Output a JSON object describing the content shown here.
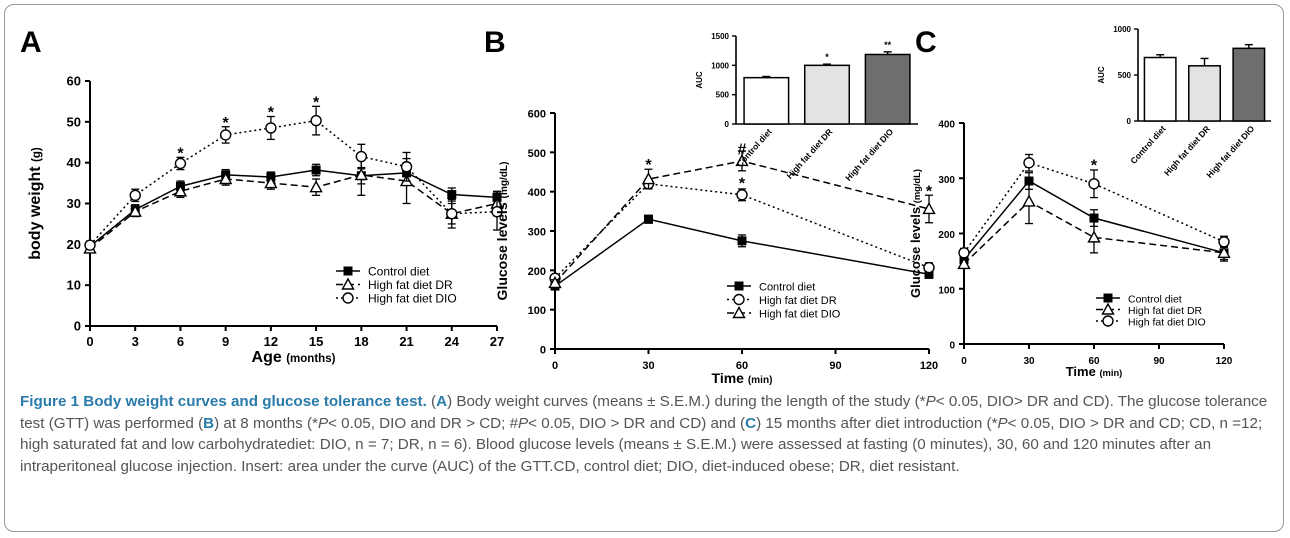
{
  "figure": {
    "caption_title": "Figure 1 Body weight curves and glucose tolerance test.",
    "caption_parts": [
      "(",
      "A",
      ") Body weight curves (means ± S.E.M.) during the length of the study (*",
      "P",
      "< 0.05, DIO> DR and CD). The glucose tolerance test (GTT) was performed (",
      "B",
      ") at 8 months (*",
      "P",
      "< 0.05, DIO and DR > CD; #",
      "P",
      "< 0.05, DIO > DR and CD) and (",
      "C",
      ") 15 months after diet introduction (*",
      "P",
      "< 0.05, DIO > DR and CD; CD, n =12; high saturated fat and low carbohydratediet: DIO, n = 7; DR, n = 6). Blood glucose levels (means ± S.E.M.) were assessed at fasting (0 minutes), 30, 60 and 120 minutes after an intraperitoneal glucose injection. Insert: area under the curve (AUC) of the GTT.CD, control diet; DIO, diet-induced obese; DR, diet resistant."
    ]
  },
  "chart_data": [
    {
      "panel": "A",
      "type": "line",
      "xlabel": "Age",
      "xlabel_unit": "(months)",
      "ylabel": "body weight",
      "ylabel_unit": "(g)",
      "xlim": [
        0,
        27
      ],
      "ylim": [
        0,
        60
      ],
      "xticks": [
        0,
        3,
        6,
        9,
        12,
        15,
        18,
        21,
        24,
        27
      ],
      "yticks": [
        0,
        10,
        20,
        30,
        40,
        50,
        60
      ],
      "x": [
        0,
        3,
        6,
        9,
        12,
        15,
        18,
        21,
        24,
        27
      ],
      "series": [
        {
          "name": "Control diet",
          "marker": "square",
          "dash": "solid",
          "values": [
            19.5,
            28.5,
            34.2,
            37.0,
            36.5,
            38.2,
            36.8,
            37.5,
            32.2,
            31.5
          ],
          "err": [
            1.0,
            1.2,
            1.3,
            1.3,
            1.2,
            1.4,
            2.0,
            2.5,
            1.6,
            1.4
          ]
        },
        {
          "name": "High fat diet DR",
          "marker": "triangle",
          "dash": "dashed",
          "values": [
            19.0,
            28.0,
            33.0,
            36.0,
            35.0,
            34.0,
            37.0,
            35.5,
            27.5,
            30.0
          ],
          "err": [
            1.0,
            1.2,
            1.5,
            1.5,
            1.5,
            2.0,
            5.0,
            5.5,
            2.5,
            3.0
          ]
        },
        {
          "name": "High fat diet DIO",
          "marker": "circle",
          "dash": "dotted",
          "values": [
            19.8,
            32.0,
            39.8,
            46.8,
            48.5,
            50.3,
            41.5,
            39.0,
            27.5,
            28.0
          ],
          "err": [
            1.0,
            1.5,
            1.5,
            2.0,
            2.8,
            3.5,
            3.0,
            3.5,
            3.5,
            4.5
          ]
        }
      ],
      "annotations": [
        {
          "x": 6,
          "y": 42.5,
          "text": "*"
        },
        {
          "x": 9,
          "y": 50.0,
          "text": "*"
        },
        {
          "x": 12,
          "y": 52.5,
          "text": "*"
        },
        {
          "x": 15,
          "y": 55.0,
          "text": "*"
        }
      ],
      "legend": "bottom-right"
    },
    {
      "panel": "B",
      "type": "line",
      "xlabel": "Time",
      "xlabel_unit": "(min)",
      "ylabel": "Glucose levels",
      "ylabel_unit": "(mg/dL)",
      "xlim": [
        0,
        120
      ],
      "ylim": [
        0,
        600
      ],
      "xticks": [
        0,
        30,
        60,
        90,
        120
      ],
      "yticks": [
        0,
        100,
        200,
        300,
        400,
        500,
        600
      ],
      "x": [
        0,
        30,
        60,
        120
      ],
      "series": [
        {
          "name": "Control diet",
          "marker": "square",
          "dash": "solid",
          "values": [
            160,
            330,
            275,
            190
          ],
          "err": [
            8,
            10,
            15,
            10
          ]
        },
        {
          "name": "High fat diet DR",
          "marker": "circle",
          "dash": "dotted",
          "values": [
            180,
            420,
            392,
            207
          ],
          "err": [
            8,
            12,
            15,
            12
          ]
        },
        {
          "name": "High fat diet DIO",
          "marker": "triangle",
          "dash": "dashed",
          "values": [
            168,
            432,
            478,
            356
          ],
          "err": [
            8,
            25,
            25,
            35
          ]
        }
      ],
      "annotations": [
        {
          "x": 30,
          "y": 470,
          "text": "*"
        },
        {
          "x": 60,
          "y": 510,
          "text": "#"
        },
        {
          "x": 60,
          "y": 423,
          "text": "*"
        },
        {
          "x": 120,
          "y": 403,
          "text": "*"
        }
      ],
      "legend": "bottom-right",
      "inset": {
        "type": "bar",
        "ylabel": "AUC",
        "ylim": [
          0,
          1500
        ],
        "yticks": [
          0,
          500,
          1000,
          1500
        ],
        "categories": [
          "Control diet",
          "High fat diet DR",
          "High fat diet DIO"
        ],
        "values": [
          790,
          1000,
          1185
        ],
        "err": [
          20,
          20,
          45
        ],
        "colors": [
          "#ffffff",
          "#e3e3e3",
          "#6e6e6e"
        ],
        "significance": [
          "",
          "*",
          "**"
        ]
      }
    },
    {
      "panel": "C",
      "type": "line",
      "xlabel": "Time",
      "xlabel_unit": "(min)",
      "ylabel": "Glucose levels",
      "ylabel_unit": "(mg/dL)",
      "xlim": [
        0,
        120
      ],
      "ylim": [
        0,
        400
      ],
      "xticks": [
        0,
        30,
        60,
        90,
        120
      ],
      "yticks": [
        0,
        100,
        200,
        300,
        400
      ],
      "x": [
        0,
        30,
        60,
        120
      ],
      "series": [
        {
          "name": "Control diet",
          "marker": "square",
          "dash": "solid",
          "values": [
            153,
            295,
            228,
            165
          ],
          "err": [
            8,
            15,
            15,
            15
          ]
        },
        {
          "name": "High fat diet DR",
          "marker": "triangle",
          "dash": "dashed",
          "values": [
            145,
            258,
            193,
            165
          ],
          "err": [
            8,
            40,
            28,
            12
          ]
        },
        {
          "name": "High fat diet DIO",
          "marker": "circle",
          "dash": "dotted",
          "values": [
            165,
            328,
            290,
            185
          ],
          "err": [
            8,
            15,
            25,
            10
          ]
        }
      ],
      "annotations": [
        {
          "x": 60,
          "y": 325,
          "text": "*"
        }
      ],
      "legend": "bottom-right",
      "inset": {
        "type": "bar",
        "ylabel": "AUC",
        "ylim": [
          0,
          1000
        ],
        "yticks": [
          0,
          500,
          1000
        ],
        "categories": [
          "Control diet",
          "High fat diet DR",
          "High fat diet DIO"
        ],
        "values": [
          690,
          600,
          790
        ],
        "err": [
          30,
          80,
          40
        ],
        "colors": [
          "#ffffff",
          "#e3e3e3",
          "#6e6e6e"
        ],
        "significance": [
          "",
          "",
          ""
        ]
      }
    }
  ]
}
